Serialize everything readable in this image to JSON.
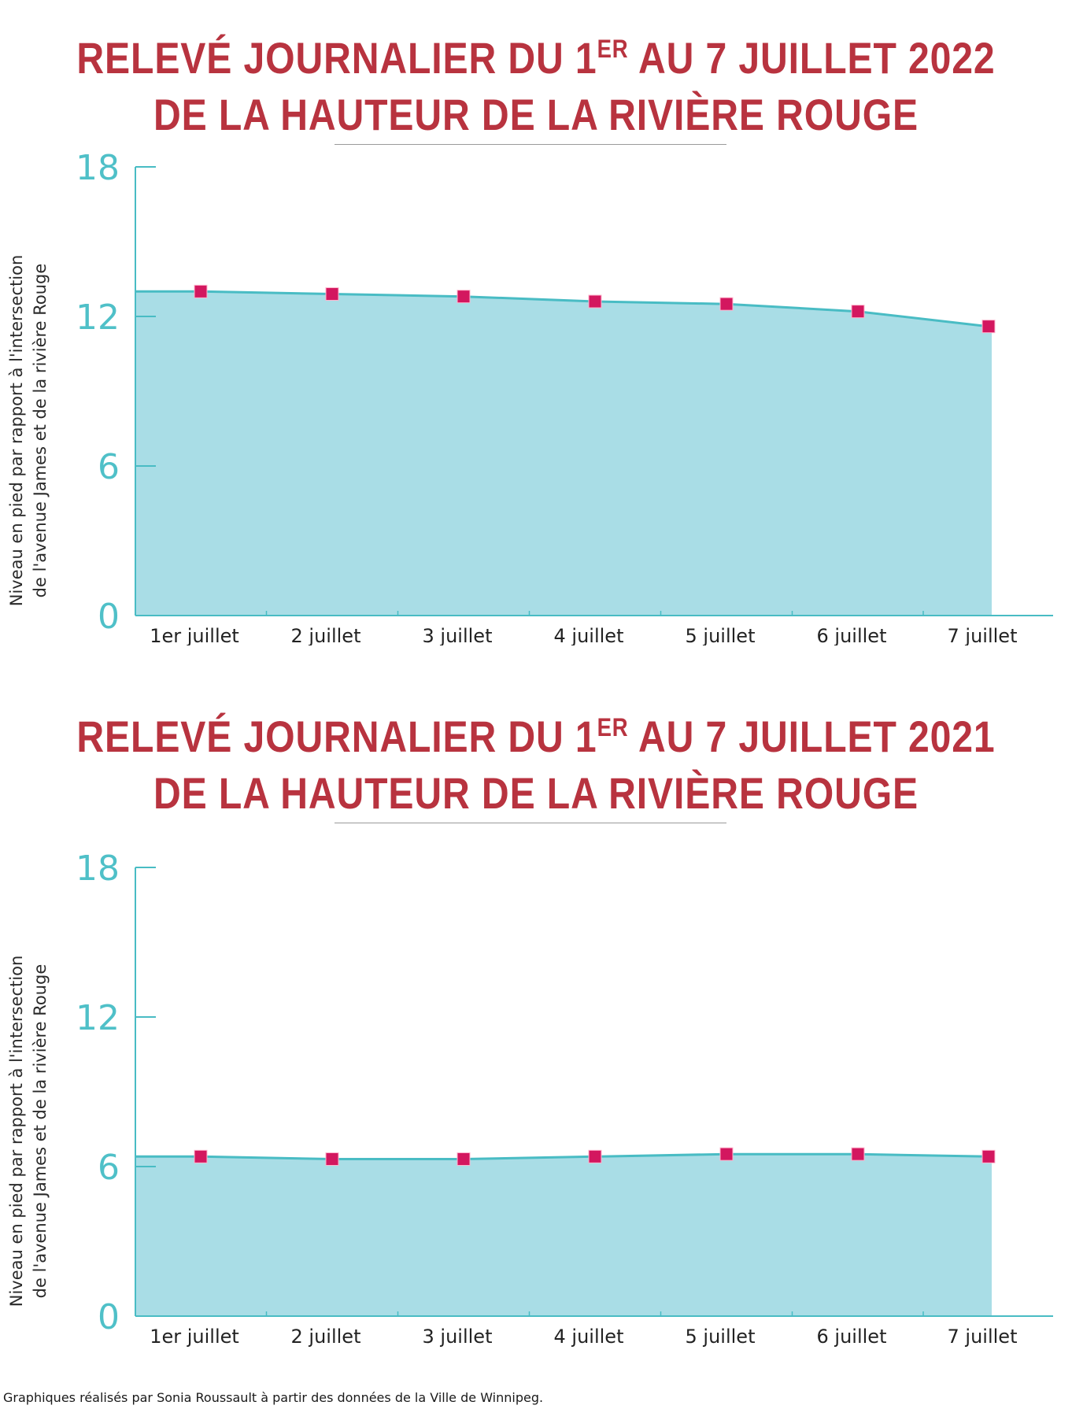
{
  "charts": [
    {
      "title_line1": "RELEVÉ JOURNALIER DU 1",
      "title_sup": "ER",
      "title_line1_end": " AU 7 JUILLET 2022",
      "title_line2": "DE LA HAUTEUR DE LA RIVIÈRE ROUGE"
    },
    {
      "title_line1": "RELEVÉ JOURNALIER DU 1",
      "title_sup": "ER",
      "title_line1_end": " AU 7 JUILLET 2021",
      "title_line2": "DE LA HAUTEUR DE LA RIVIÈRE ROUGE"
    }
  ],
  "credit": "Graphiques réalisés par Sonia Roussault à partir des données de la Ville de Winnipeg.",
  "colors": {
    "title": "#b8333f",
    "area_fill": "#a9dde6",
    "line": "#49bcc4",
    "axis": "#49bcc4",
    "marker": "#d3175f",
    "tick_label": "#4fc0c8"
  },
  "chart_data": [
    {
      "type": "area",
      "title": "RELEVÉ JOURNALIER DU 1ER AU 7 JUILLET 2022 DE LA HAUTEUR DE LA RIVIÈRE ROUGE",
      "categories": [
        "1er juillet",
        "2 juillet",
        "3 juillet",
        "4 juillet",
        "5 juillet",
        "6 juillet",
        "7 juillet"
      ],
      "values": [
        13.0,
        12.9,
        12.8,
        12.6,
        12.5,
        12.2,
        11.6
      ],
      "ylabel_line1": "Niveau en pied par rapport à l'intersection",
      "ylabel_line2": "de l'avenue James et de la rivière Rouge",
      "ylim": [
        0,
        18
      ],
      "yticks": [
        "0",
        "6",
        "12",
        "18"
      ],
      "marker": "square",
      "grid": false
    },
    {
      "type": "area",
      "title": "RELEVÉ JOURNALIER DU 1ER AU 7 JUILLET 2021 DE LA HAUTEUR DE LA RIVIÈRE ROUGE",
      "categories": [
        "1er juillet",
        "2 juillet",
        "3 juillet",
        "4 juillet",
        "5 juillet",
        "6 juillet",
        "7 juillet"
      ],
      "values": [
        6.4,
        6.3,
        6.3,
        6.4,
        6.5,
        6.5,
        6.4
      ],
      "ylabel_line1": "Niveau en pied par rapport à l'intersection",
      "ylabel_line2": "de l'avenue James et de la rivière Rouge",
      "ylim": [
        0,
        18
      ],
      "yticks": [
        "0",
        "6",
        "12",
        "18"
      ],
      "marker": "square",
      "grid": false
    }
  ]
}
